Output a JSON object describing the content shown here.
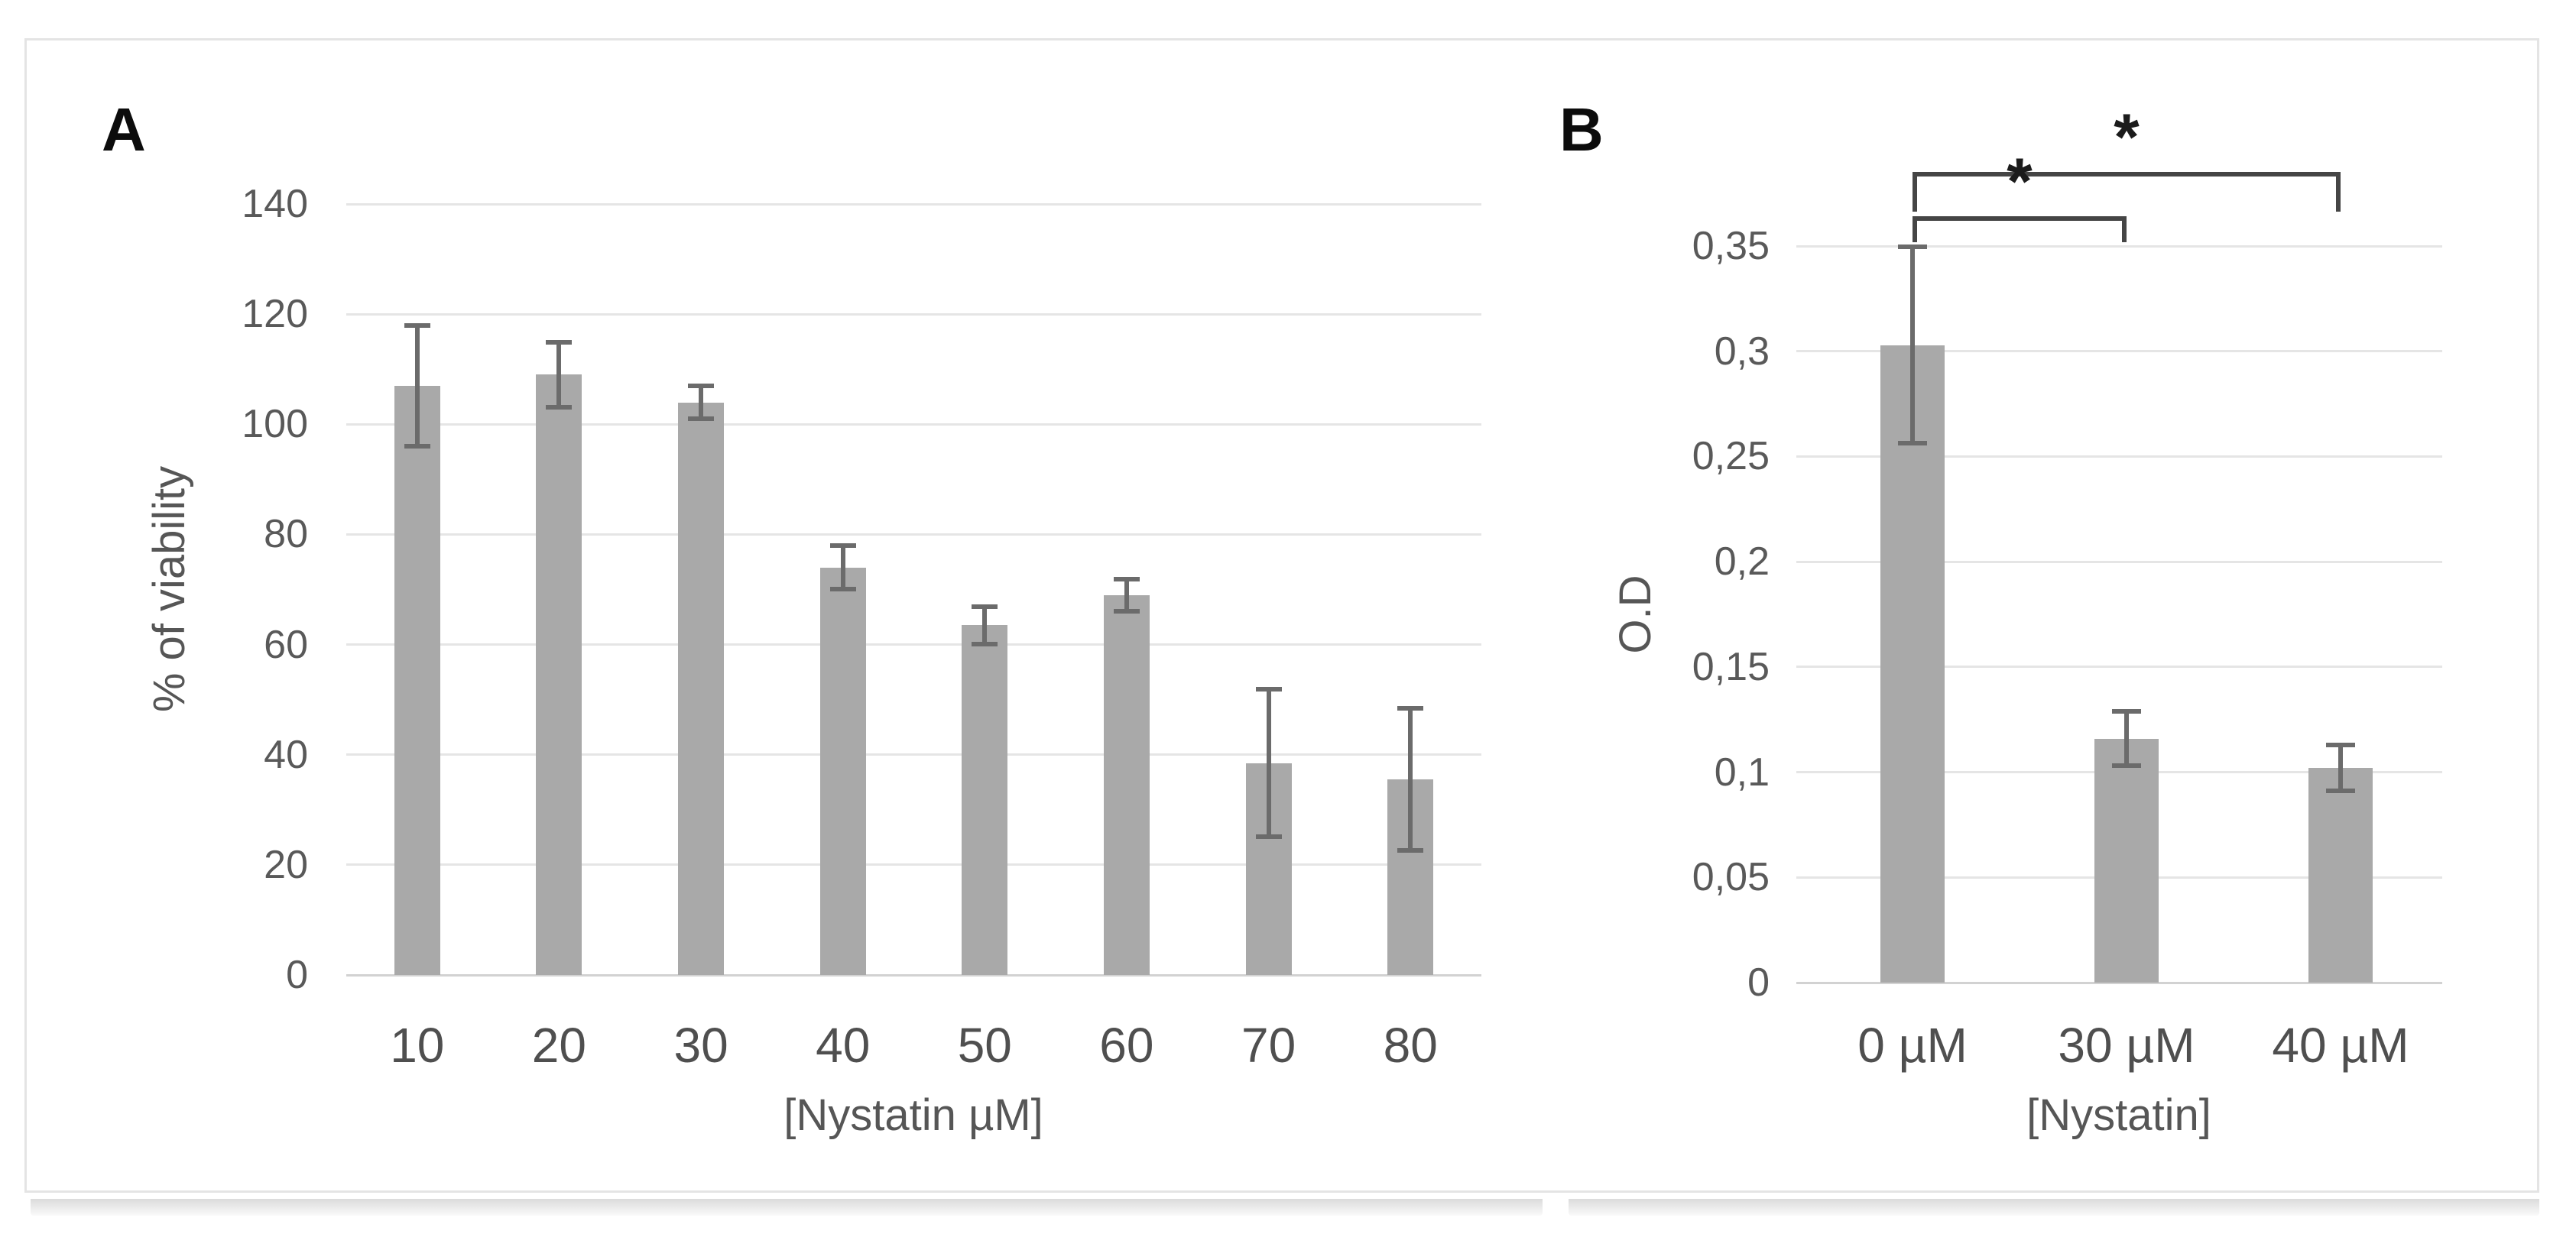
{
  "figure": {
    "panels": [
      {
        "label": "A"
      },
      {
        "label": "B"
      }
    ]
  },
  "chart_data": [
    {
      "type": "bar",
      "panel": "A",
      "title": "",
      "xlabel": "[Nystatin µM]",
      "ylabel": "% of viability",
      "categories": [
        "10",
        "20",
        "30",
        "40",
        "50",
        "60",
        "70",
        "80"
      ],
      "values": [
        107,
        109,
        104,
        74,
        63.5,
        69,
        38.5,
        35.5
      ],
      "errors": [
        11,
        6,
        3,
        4,
        3.5,
        3,
        13.5,
        13
      ],
      "ylim": [
        0,
        140
      ],
      "ytick_step": 20,
      "ytick_labels": [
        "0",
        "20",
        "40",
        "60",
        "80",
        "100",
        "120",
        "140"
      ],
      "grid": true,
      "legend": "none",
      "bar_color": "#a9a9a9",
      "error_color": "#6b6b6b"
    },
    {
      "type": "bar",
      "panel": "B",
      "title": "",
      "xlabel": "[Nystatin]",
      "ylabel": "O.D",
      "categories": [
        "0 µM",
        "30 µM",
        "40 µM"
      ],
      "values": [
        0.303,
        0.116,
        0.102
      ],
      "errors": [
        0.047,
        0.013,
        0.011
      ],
      "ylim": [
        0,
        0.35
      ],
      "ytick_step": 0.05,
      "ytick_labels": [
        "0",
        "0,05",
        "0,1",
        "0,15",
        "0,2",
        "0,25",
        "0,3",
        "0,35"
      ],
      "grid": true,
      "legend": "none",
      "bar_color": "#a9a9a9",
      "error_color": "#6b6b6b",
      "significance": [
        {
          "from": 0,
          "to": 2,
          "label": "*"
        },
        {
          "from": 0,
          "to": 1,
          "label": "*"
        }
      ]
    }
  ]
}
